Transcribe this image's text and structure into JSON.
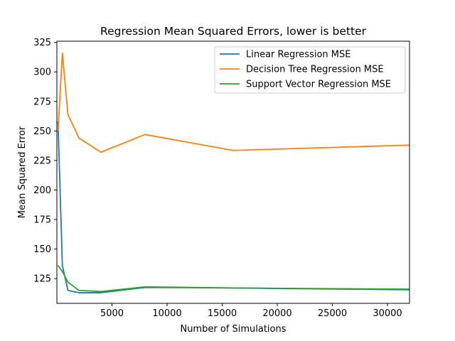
{
  "chart_data": {
    "type": "line",
    "title": "Regression Mean Squared Errors, lower is better",
    "xlabel": "Number of Simulations",
    "ylabel": "Mean Squared Error",
    "xlim": [
      0,
      32000
    ],
    "ylim": [
      104,
      326
    ],
    "xticks": [
      5000,
      10000,
      15000,
      20000,
      25000,
      30000
    ],
    "yticks": [
      125,
      150,
      175,
      200,
      225,
      250,
      275,
      300,
      325
    ],
    "grid": false,
    "legend_position": "top-right",
    "series": [
      {
        "name": "Linear Regression MSE",
        "color": "#1f77b4",
        "x": [
          100,
          500,
          1000,
          2000,
          4000,
          8000,
          16000,
          32000
        ],
        "y": [
          258,
          136,
          115,
          113,
          113,
          117.5,
          117,
          115.5
        ]
      },
      {
        "name": "Decision Tree Regression MSE",
        "color": "#ff7f0e",
        "x": [
          100,
          500,
          1000,
          2000,
          4000,
          8000,
          16000,
          32000
        ],
        "y": [
          250,
          316,
          264,
          244,
          232,
          247,
          233.5,
          238
        ]
      },
      {
        "name": "Support Vector Regression MSE",
        "color": "#2ca02c",
        "x": [
          100,
          500,
          1000,
          2000,
          4000,
          8000,
          16000,
          32000
        ],
        "y": [
          136,
          131,
          122,
          115,
          114,
          118,
          117,
          116
        ]
      }
    ]
  }
}
